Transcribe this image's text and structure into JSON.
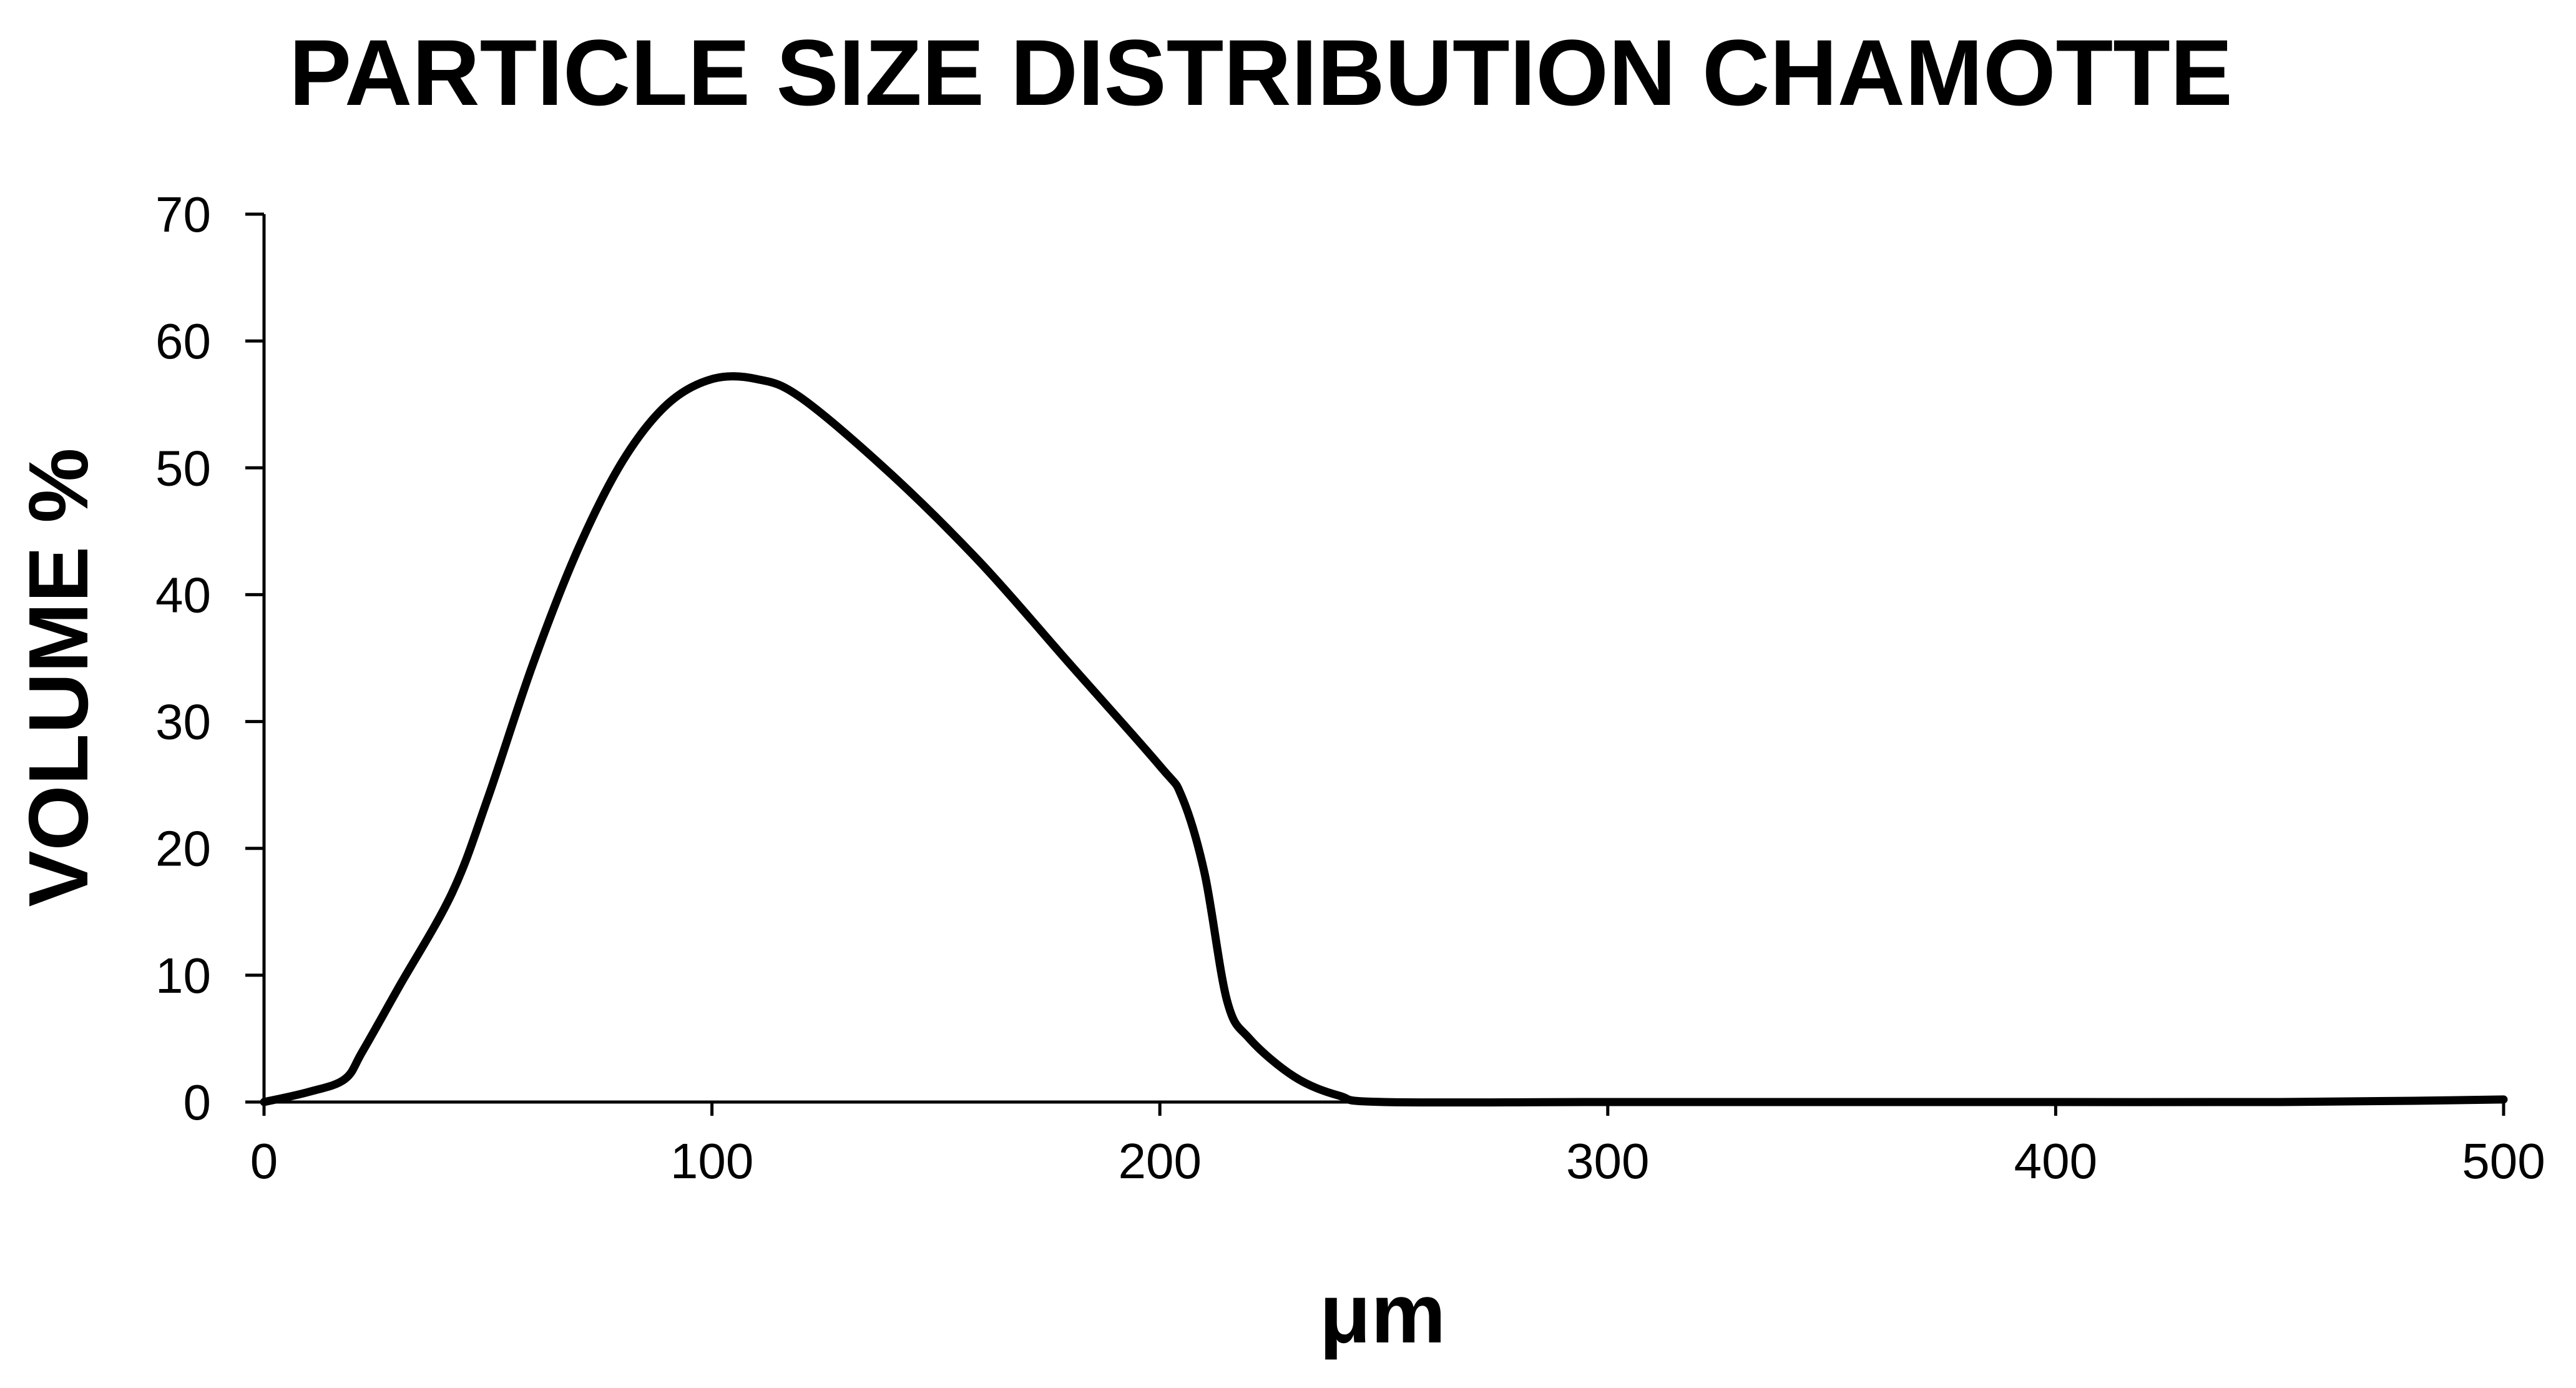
{
  "chart_data": {
    "type": "line",
    "title": "PARTICLE SIZE DISTRIBUTION CHAMOTTE",
    "xlabel": "μm",
    "ylabel": "VOLUME %",
    "xlim": [
      0,
      500
    ],
    "ylim": [
      0,
      70
    ],
    "x_ticks": [
      0,
      100,
      200,
      300,
      400,
      500
    ],
    "y_ticks": [
      0,
      10,
      20,
      30,
      40,
      50,
      60,
      70
    ],
    "x_tick_labels": [
      "0",
      "100",
      "200",
      "300",
      "400",
      "500"
    ],
    "y_tick_labels": [
      "0",
      "10",
      "20",
      "30",
      "40",
      "50",
      "60",
      "70"
    ],
    "grid": false,
    "legend": "none",
    "series": [
      {
        "name": "Chamotte",
        "color": "#000000",
        "x": [
          0,
          10,
          18,
          22,
          30,
          42,
          50,
          60,
          70,
          80,
          90,
          100,
          110,
          120,
          140,
          160,
          180,
          200,
          205,
          210,
          215,
          220,
          230,
          240,
          250,
          300,
          350,
          400,
          450,
          480,
          500
        ],
        "y": [
          0,
          0.8,
          1.8,
          4,
          9,
          16.5,
          24,
          34.5,
          43.5,
          50.5,
          55,
          57,
          57,
          55.5,
          49.5,
          42.5,
          34.5,
          26.5,
          24,
          18,
          8,
          5,
          2,
          0.5,
          0,
          0,
          0,
          0,
          0,
          0.1,
          0.2
        ]
      }
    ]
  }
}
